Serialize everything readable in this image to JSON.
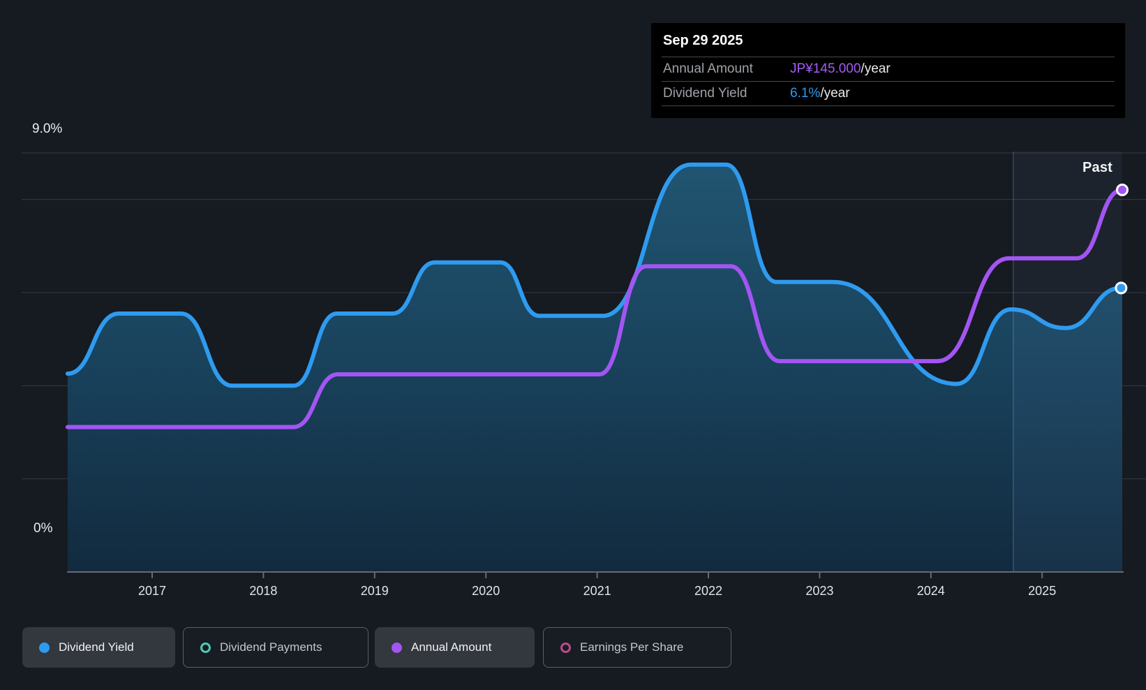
{
  "page": {
    "background": "#161A21"
  },
  "tooltip": {
    "date": "Sep 29 2025",
    "rows": [
      {
        "label": "Annual Amount",
        "value": "JP¥145.000",
        "suffix": "/year",
        "color": "#A55CF5"
      },
      {
        "label": "Dividend Yield",
        "value": "6.1%",
        "suffix": "/year",
        "color": "#2F9BF0"
      }
    ]
  },
  "past_label": "Past",
  "legend": {
    "items": [
      {
        "label": "Dividend Yield",
        "active": true,
        "marker": "filled",
        "color": "#2E9BF0"
      },
      {
        "label": "Dividend Payments",
        "active": false,
        "marker": "ring",
        "color": "#4FC9B8"
      },
      {
        "label": "Annual Amount",
        "active": true,
        "marker": "filled",
        "color": "#A355F3"
      },
      {
        "label": "Earnings Per Share",
        "active": false,
        "marker": "ring",
        "color": "#BD4B87"
      }
    ]
  },
  "chart_data": {
    "type": "area",
    "x_axis": {
      "ticks": [
        "2017",
        "2018",
        "2019",
        "2020",
        "2021",
        "2022",
        "2023",
        "2024",
        "2025"
      ],
      "start": 2016.24,
      "end": 2025.72
    },
    "y_axis": {
      "label_top": "9.0%",
      "label_bottom": "0%",
      "min_pct": 0,
      "max_pct": 9,
      "gridline_pcts": [
        9,
        8,
        6,
        4,
        2
      ],
      "grid_on": true
    },
    "past_divider_year": 2024.74,
    "legend_position": "bottom",
    "series": [
      {
        "name": "Dividend Yield",
        "unit": "percent_per_year",
        "color": "#2E9BF0",
        "area_fill": true,
        "scale_max": 9,
        "end_value_label": "6.1%",
        "points": [
          [
            2016.24,
            4.26
          ],
          [
            2016.7,
            5.55
          ],
          [
            2017.26,
            5.55
          ],
          [
            2017.72,
            4.0
          ],
          [
            2018.27,
            4.0
          ],
          [
            2018.66,
            5.55
          ],
          [
            2019.16,
            5.55
          ],
          [
            2019.54,
            6.65
          ],
          [
            2020.13,
            6.65
          ],
          [
            2020.48,
            5.5
          ],
          [
            2021.05,
            5.5
          ],
          [
            2021.84,
            8.75
          ],
          [
            2022.16,
            8.75
          ],
          [
            2022.61,
            6.23
          ],
          [
            2023.12,
            6.23
          ],
          [
            2024.23,
            4.04
          ],
          [
            2024.72,
            5.64
          ],
          [
            2025.21,
            5.24
          ],
          [
            2025.71,
            6.1
          ]
        ]
      },
      {
        "name": "Annual Amount",
        "unit": "JPY_per_year",
        "color": "#A355F3",
        "area_fill": false,
        "scale_max": 159,
        "end_value_label": "JP¥145.000",
        "points": [
          [
            2016.24,
            55
          ],
          [
            2018.27,
            55
          ],
          [
            2018.67,
            75
          ],
          [
            2021.02,
            75
          ],
          [
            2021.44,
            116
          ],
          [
            2022.2,
            116
          ],
          [
            2022.64,
            80
          ],
          [
            2024.06,
            80
          ],
          [
            2024.7,
            119
          ],
          [
            2025.31,
            119
          ],
          [
            2025.72,
            145
          ]
        ]
      }
    ],
    "colors": {
      "gridline": "#363B43",
      "axis_line": "#666B72",
      "tick": "#666B72",
      "fill_top": "#215672",
      "fill_mid": "#19425C",
      "fill_bottom": "#122A3E",
      "past_highlight": "rgba(125,170,230,0.065)",
      "past_divider": "rgba(148,178,224,0.28)",
      "marker_ring": "#FFFFFF"
    }
  }
}
